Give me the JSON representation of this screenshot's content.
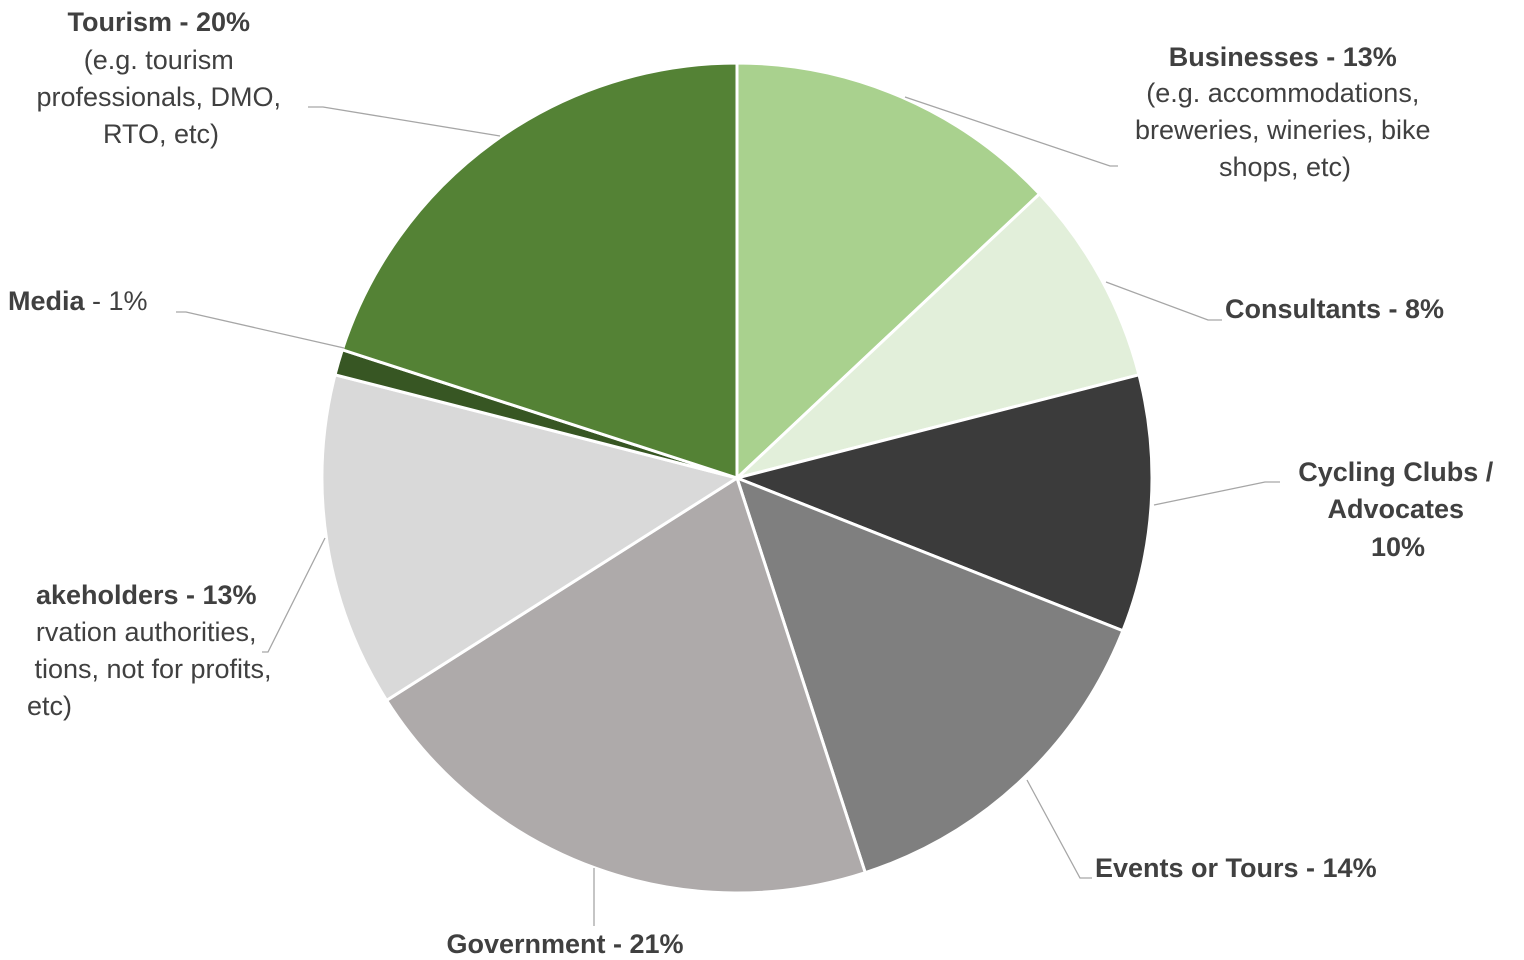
{
  "chart_data": {
    "type": "pie",
    "title": "",
    "colors": {
      "Businesses": "#a9d18e",
      "Consultants": "#e2efda",
      "Cycling Clubs / Advocates": "#3b3b3b",
      "Events or Tours": "#7f7f7f",
      "Government": "#aeaaaa",
      "Other Stakeholders": "#d9d9d9",
      "Media": "#375623",
      "Tourism": "#548235"
    },
    "slices": [
      {
        "name": "Businesses",
        "value": 13,
        "label_bold": "Businesses - 13%",
        "label_detail": [
          "(e.g. accommodations,",
          "breweries, wineries, bike",
          "shops, etc)"
        ]
      },
      {
        "name": "Consultants",
        "value": 8,
        "label_bold": "Consultants - 8%",
        "label_detail": []
      },
      {
        "name": "Cycling Clubs / Advocates",
        "value": 10,
        "label_bold_lines": [
          "Cycling Clubs /",
          "Advocates",
          "10%"
        ],
        "label_detail": []
      },
      {
        "name": "Events or Tours",
        "value": 14,
        "label_bold": "Events or Tours - 14%",
        "label_detail": []
      },
      {
        "name": "Government",
        "value": 21,
        "label_bold": "Government - 21%",
        "label_detail": []
      },
      {
        "name": "Other Stakeholders",
        "value": 13,
        "label_bold": "akeholders - 13%",
        "label_detail": [
          "rvation authorities,",
          "tions, not for profits,",
          "etc)"
        ]
      },
      {
        "name": "Media",
        "value": 1,
        "label_bold": "Media",
        "label_regular": " - 1%",
        "label_detail": []
      },
      {
        "name": "Tourism",
        "value": 20,
        "label_bold": "Tourism - 20%",
        "label_detail": [
          "(e.g. tourism",
          "professionals, DMO,",
          "RTO, etc)"
        ]
      }
    ]
  }
}
